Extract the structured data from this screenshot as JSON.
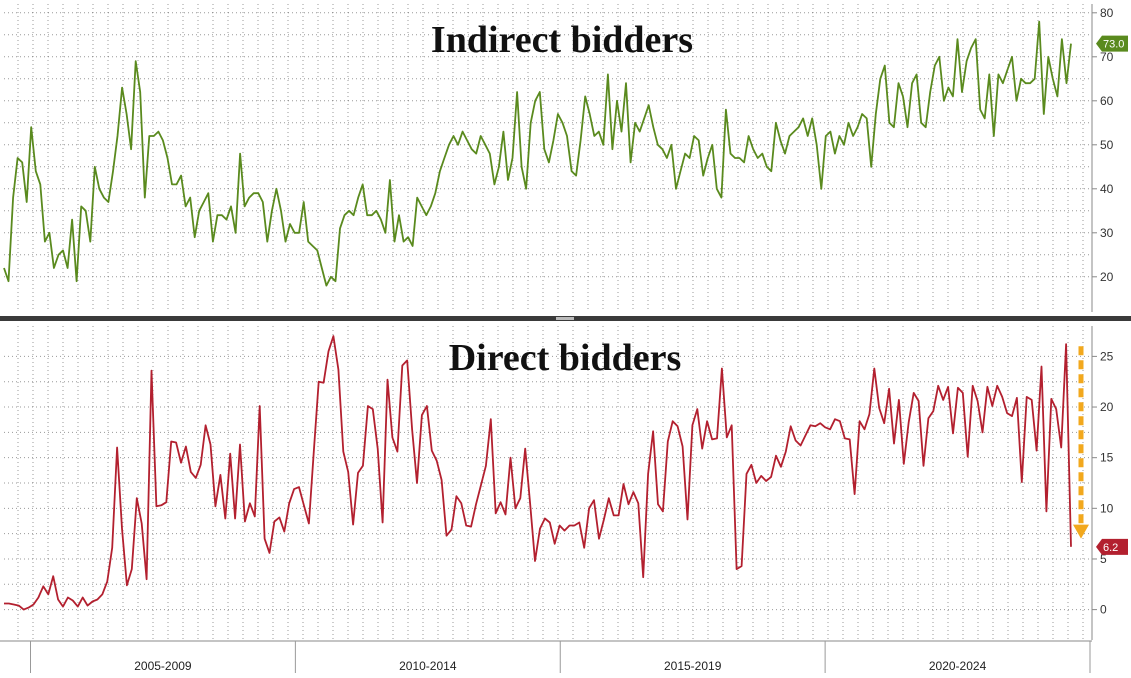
{
  "chart_data": [
    {
      "type": "line",
      "title": "Indirect bidders",
      "color": "#5a8a1e",
      "ylim": [
        12,
        82
      ],
      "yticks": [
        20,
        30,
        40,
        50,
        60,
        70,
        80
      ],
      "last_value_label": "73.0",
      "x_start": 2004.5,
      "x_end": 2025.0,
      "values": [
        22,
        19,
        38,
        47,
        46,
        37,
        54,
        44,
        41,
        28,
        30,
        22,
        25,
        26,
        22,
        33,
        19,
        36,
        35,
        28,
        45,
        40,
        38,
        37,
        44,
        52,
        63,
        57,
        49,
        69,
        62,
        38,
        52,
        52,
        53,
        51,
        47,
        41,
        41,
        43,
        36,
        38,
        29,
        35,
        37,
        39,
        28,
        34,
        34,
        33,
        36,
        30,
        48,
        36,
        38,
        39,
        39,
        37,
        28,
        35,
        40,
        35,
        28,
        32,
        30,
        30,
        37,
        28,
        27,
        26,
        22,
        18,
        20,
        19,
        31,
        34,
        35,
        34,
        38,
        41,
        34,
        34,
        35,
        33,
        30,
        42,
        28,
        34,
        28,
        29,
        27,
        38,
        36,
        34,
        36,
        39,
        44,
        47,
        50,
        52,
        50,
        53,
        51,
        49,
        48,
        52,
        50,
        48,
        41,
        45,
        53,
        42,
        47,
        62,
        45,
        40,
        55,
        60,
        62,
        49,
        46,
        51,
        57,
        55,
        52,
        44,
        43,
        51,
        61,
        57,
        52,
        53,
        50,
        66,
        49,
        60,
        53,
        64,
        46,
        55,
        53,
        56,
        59,
        54,
        50,
        49,
        47,
        50,
        40,
        44,
        48,
        47,
        52,
        51,
        43,
        47,
        50,
        40,
        38,
        58,
        48,
        47,
        47,
        46,
        52,
        49,
        47,
        48,
        45,
        44,
        55,
        51,
        48,
        52,
        53,
        54,
        56,
        52,
        56,
        50,
        40,
        52,
        53,
        48,
        52,
        50,
        55,
        52,
        54,
        57,
        56,
        45,
        57,
        65,
        68,
        55,
        54,
        64,
        61,
        54,
        64,
        66,
        55,
        54,
        62,
        68,
        70,
        60,
        63,
        61,
        74,
        62,
        69,
        72,
        74,
        58,
        56,
        66,
        52,
        66,
        64,
        67,
        70,
        60,
        65,
        64,
        64,
        65,
        78,
        57,
        70,
        65,
        61,
        74,
        64,
        73
      ]
    },
    {
      "type": "line",
      "title": "Direct bidders",
      "color": "#b3202f",
      "ylim": [
        -3,
        28
      ],
      "yticks": [
        0,
        5,
        10,
        15,
        20,
        25
      ],
      "last_value_label": "6.2",
      "x_start": 2004.5,
      "x_end": 2025.0,
      "x_labels": [
        "2005-2009",
        "2010-2014",
        "2015-2019",
        "2020-2024"
      ],
      "values": [
        0.6,
        0.6,
        0.5,
        0.4,
        0.0,
        0.2,
        0.5,
        1.2,
        2.3,
        1.5,
        3.3,
        1.0,
        0.3,
        1.2,
        0.9,
        0.3,
        1.2,
        0.4,
        0.8,
        1.0,
        1.5,
        2.8,
        6.1,
        16.0,
        8.0,
        2.4,
        4.0,
        11.0,
        8.5,
        3.0,
        23.6,
        10.2,
        10.3,
        10.6,
        16.6,
        16.5,
        14.5,
        16.1,
        13.6,
        13.0,
        14.3,
        18.2,
        16.3,
        10.2,
        13.3,
        9.0,
        15.4,
        9.0,
        16.3,
        8.7,
        10.5,
        9.2,
        20.1,
        7.0,
        5.6,
        8.7,
        9.1,
        7.7,
        10.5,
        11.9,
        12.1,
        10.3,
        8.5,
        15.6,
        22.5,
        22.4,
        25.5,
        27.0,
        23.7,
        15.6,
        13.6,
        8.4,
        13.5,
        14.2,
        20.1,
        19.8,
        15.9,
        8.6,
        22.7,
        17.0,
        15.6,
        24.1,
        24.6,
        17.8,
        12.5,
        19.2,
        20.1,
        15.7,
        14.7,
        12.8,
        7.3,
        7.9,
        11.2,
        10.5,
        8.3,
        8.2,
        10.4,
        12.3,
        14.2,
        18.8,
        9.5,
        10.6,
        9.4,
        15.0,
        10.0,
        11.0,
        15.9,
        10.5,
        4.8,
        8.0,
        9.0,
        8.6,
        6.5,
        8.3,
        7.8,
        8.3,
        8.3,
        8.6,
        6.1,
        10.0,
        10.8,
        7.0,
        8.9,
        11.0,
        9.3,
        9.3,
        12.4,
        10.4,
        11.6,
        10.5,
        3.2,
        13.4,
        17.6,
        10.4,
        9.7,
        16.6,
        18.6,
        18.1,
        16.1,
        8.9,
        18.2,
        19.8,
        15.9,
        18.6,
        16.8,
        16.9,
        23.8,
        17.0,
        18.2,
        4.0,
        4.3,
        13.4,
        14.3,
        12.5,
        13.2,
        12.7,
        13.1,
        15.2,
        14.1,
        15.6,
        18.1,
        16.7,
        16.2,
        17.2,
        18.2,
        18.1,
        18.4,
        18.0,
        17.8,
        18.8,
        18.6,
        16.9,
        16.8,
        11.4,
        18.6,
        17.8,
        19.3,
        23.8,
        19.9,
        18.4,
        21.8,
        16.4,
        20.7,
        14.4,
        18.5,
        21.4,
        20.6,
        14.2,
        18.9,
        19.6,
        22.1,
        20.7,
        22.0,
        17.4,
        21.9,
        21.4,
        15.1,
        22.1,
        20.6,
        17.5,
        22.0,
        20.1,
        22.1,
        21.0,
        19.4,
        19.1,
        20.9,
        12.6,
        21.0,
        20.7,
        15.7,
        24.0,
        9.7,
        20.8,
        19.8,
        16.0,
        26.2,
        6.2
      ]
    }
  ]
}
